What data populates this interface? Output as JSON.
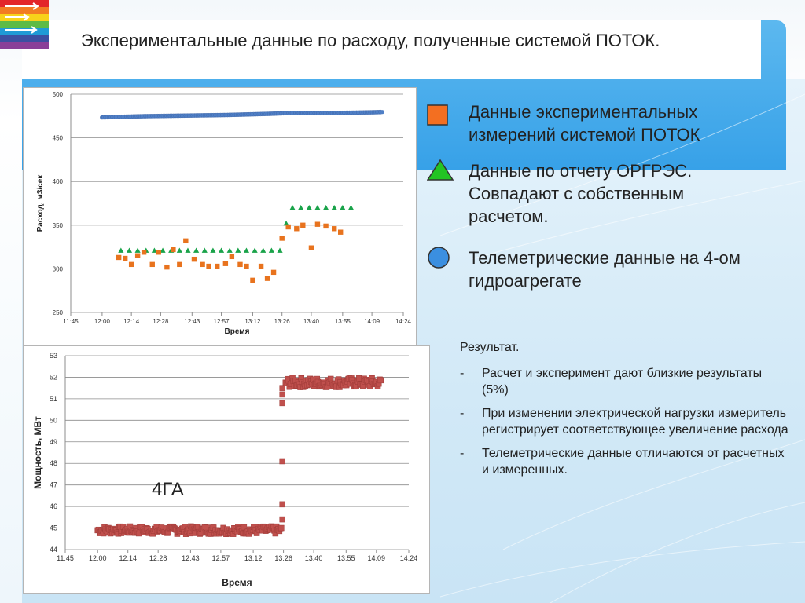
{
  "slide": {
    "title": "Экспериментальные данные по расходу, полученные системой ПОТОК."
  },
  "legend": [
    {
      "text": "Данные экспериментальных измерений системой ПОТОК",
      "color": "#f36f21",
      "shape": "square"
    },
    {
      "text": "Данные по отчету ОРГРЭС. Совпадают с собственным расчетом.",
      "color": "#23c423",
      "shape": "triangle"
    },
    {
      "text": "Телеметрические данные на 4-ом гидроагрегате",
      "color": "#3b8fe0",
      "shape": "circle"
    }
  ],
  "result": {
    "heading": "Результат.",
    "dash": "-",
    "bullets": [
      "Расчет и эксперимент дают близкие результаты (5%)",
      "При изменении электрической нагрузки измеритель регистрирует соответствующее увеличение расхода",
      "Телеметрические данные отличаются от расчетных и измеренных."
    ]
  },
  "label_4ga": "4ГА",
  "chart_data": [
    {
      "type": "scatter",
      "xlabel": "Время",
      "ylabel": "Расход, м3/сек",
      "x_ticks": [
        "11:45",
        "12:00",
        "12:14",
        "12:28",
        "12:43",
        "12:57",
        "13:12",
        "13:26",
        "13:40",
        "13:55",
        "14:09",
        "14:24"
      ],
      "y_ticks": [
        250,
        300,
        350,
        400,
        450,
        500
      ],
      "ylim": [
        250,
        500
      ],
      "grid": true,
      "series": [
        {
          "name": "Телеметрические данные",
          "marker": "circle",
          "color": "#4f7fc6",
          "points": [
            [
              "12:00",
              473.5
            ],
            [
              "12:20",
              474.8
            ],
            [
              "12:40",
              475.5
            ],
            [
              "13:00",
              476.2
            ],
            [
              "13:20",
              477.5
            ],
            [
              "13:30",
              478.5
            ],
            [
              "13:45",
              478.2
            ],
            [
              "14:00",
              478.8
            ],
            [
              "14:10",
              479.3
            ],
            [
              "14:14",
              479.6
            ]
          ]
        },
        {
          "name": "Данные по отчету ОРГРЭС",
          "marker": "triangle",
          "color": "#1aa34a",
          "points": [
            [
              "12:09",
              321
            ],
            [
              "12:13",
              321
            ],
            [
              "12:17",
              321
            ],
            [
              "12:21",
              321
            ],
            [
              "12:25",
              321
            ],
            [
              "12:29",
              321
            ],
            [
              "12:33",
              321
            ],
            [
              "12:37",
              321
            ],
            [
              "12:41",
              321
            ],
            [
              "12:45",
              321
            ],
            [
              "12:49",
              321
            ],
            [
              "12:53",
              321
            ],
            [
              "12:57",
              321
            ],
            [
              "13:01",
              321
            ],
            [
              "13:05",
              321
            ],
            [
              "13:09",
              321
            ],
            [
              "13:13",
              321
            ],
            [
              "13:17",
              321
            ],
            [
              "13:21",
              321
            ],
            [
              "13:25",
              321
            ],
            [
              "13:28",
              352
            ],
            [
              "13:31",
              370
            ],
            [
              "13:35",
              370
            ],
            [
              "13:39",
              370
            ],
            [
              "13:43",
              370
            ],
            [
              "13:47",
              370
            ],
            [
              "13:51",
              370
            ],
            [
              "13:55",
              370
            ],
            [
              "13:59",
              370
            ]
          ]
        },
        {
          "name": "Данные экспериментальных измерений",
          "marker": "square",
          "color": "#e8731e",
          "points": [
            [
              "12:08",
              313
            ],
            [
              "12:11",
              312
            ],
            [
              "12:14",
              305
            ],
            [
              "12:17",
              315
            ],
            [
              "12:20",
              319
            ],
            [
              "12:24",
              305
            ],
            [
              "12:27",
              319
            ],
            [
              "12:31",
              302
            ],
            [
              "12:34",
              322
            ],
            [
              "12:37",
              305
            ],
            [
              "12:40",
              332
            ],
            [
              "12:44",
              311
            ],
            [
              "12:48",
              305
            ],
            [
              "12:51",
              303
            ],
            [
              "12:55",
              303
            ],
            [
              "12:59",
              306
            ],
            [
              "13:02",
              314
            ],
            [
              "13:06",
              305
            ],
            [
              "13:09",
              303
            ],
            [
              "13:12",
              287
            ],
            [
              "13:16",
              303
            ],
            [
              "13:19",
              289
            ],
            [
              "13:22",
              296
            ],
            [
              "13:26",
              335
            ],
            [
              "13:29",
              348
            ],
            [
              "13:33",
              346
            ],
            [
              "13:36",
              350
            ],
            [
              "13:40",
              324
            ],
            [
              "13:43",
              351
            ],
            [
              "13:47",
              349
            ],
            [
              "13:51",
              346
            ],
            [
              "13:54",
              342
            ]
          ]
        }
      ]
    },
    {
      "type": "scatter",
      "xlabel": "Время",
      "ylabel": "Мощность, МВт",
      "x_ticks": [
        "11:45",
        "12:00",
        "12:14",
        "12:28",
        "12:43",
        "12:57",
        "13:12",
        "13:26",
        "13:40",
        "13:55",
        "14:09",
        "14:24"
      ],
      "y_ticks": [
        44,
        45,
        46,
        47,
        48,
        49,
        50,
        51,
        52,
        53
      ],
      "ylim": [
        44,
        53
      ],
      "grid": true,
      "series": [
        {
          "name": "Мощность 4ГА",
          "marker": "square",
          "color": "#c0504d",
          "segments": [
            {
              "x_from": "12:00",
              "x_to": "13:25",
              "y_center": 44.9,
              "y_amplitude": 0.18
            },
            {
              "x_from": "13:25",
              "x_to": "13:26",
              "y_values": [
                45.4,
                46.1,
                48.1,
                50.8,
                51.2,
                51.5
              ]
            },
            {
              "x_from": "13:27",
              "x_to": "14:11",
              "y_center": 51.75,
              "y_amplitude": 0.22
            }
          ]
        }
      ]
    }
  ]
}
